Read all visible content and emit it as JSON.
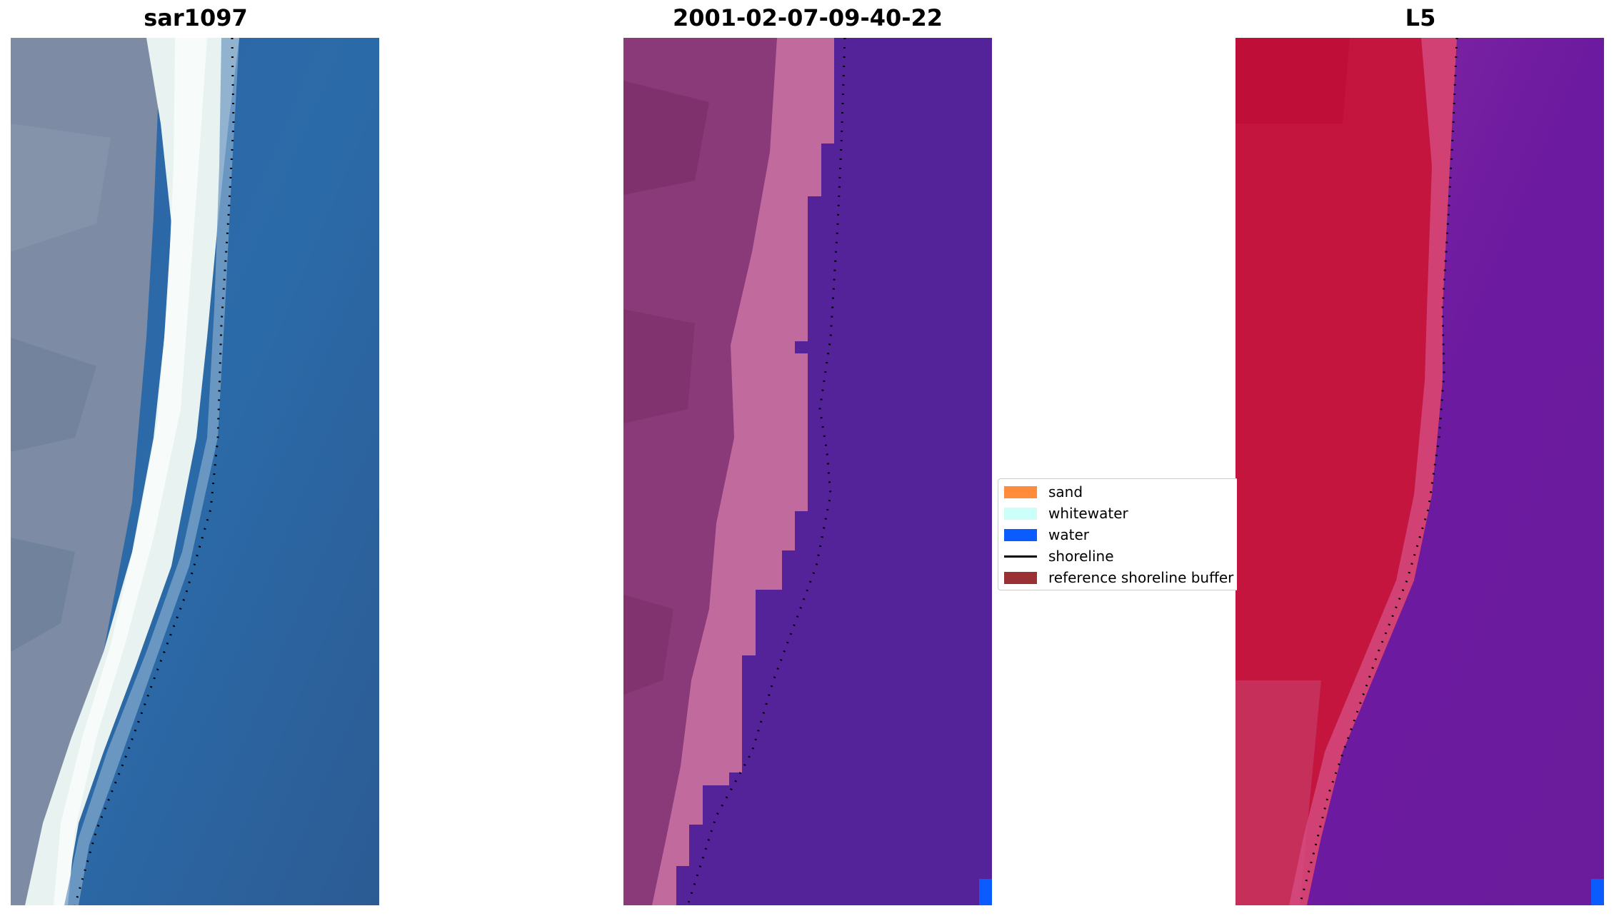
{
  "panels": [
    {
      "title": "sar1097"
    },
    {
      "title": "2001-02-07-09-40-22"
    },
    {
      "title": "L5"
    }
  ],
  "legend": {
    "items": [
      {
        "label": "sand",
        "color": "#ff8c3a",
        "kind": "patch"
      },
      {
        "label": "whitewater",
        "color": "#ccfffa",
        "kind": "patch"
      },
      {
        "label": "water",
        "color": "#0a5cff",
        "kind": "patch"
      },
      {
        "label": "shoreline",
        "color": "#000000",
        "kind": "line"
      },
      {
        "label": "reference shoreline buffer",
        "color": "#9a3034",
        "kind": "patch"
      }
    ]
  },
  "colors": {
    "rgb_land": "#7b8aa4",
    "rgb_whitewater": "#eef6f4",
    "rgb_water": "#2e5f98",
    "class_land": "#8a3a78",
    "class_beach": "#c06a9e",
    "class_water": "#54239a",
    "class_water_marker": "#0a5cff",
    "index_land": "#c4153e",
    "index_water": "#6c1aa0",
    "shoreline": "#000000"
  }
}
